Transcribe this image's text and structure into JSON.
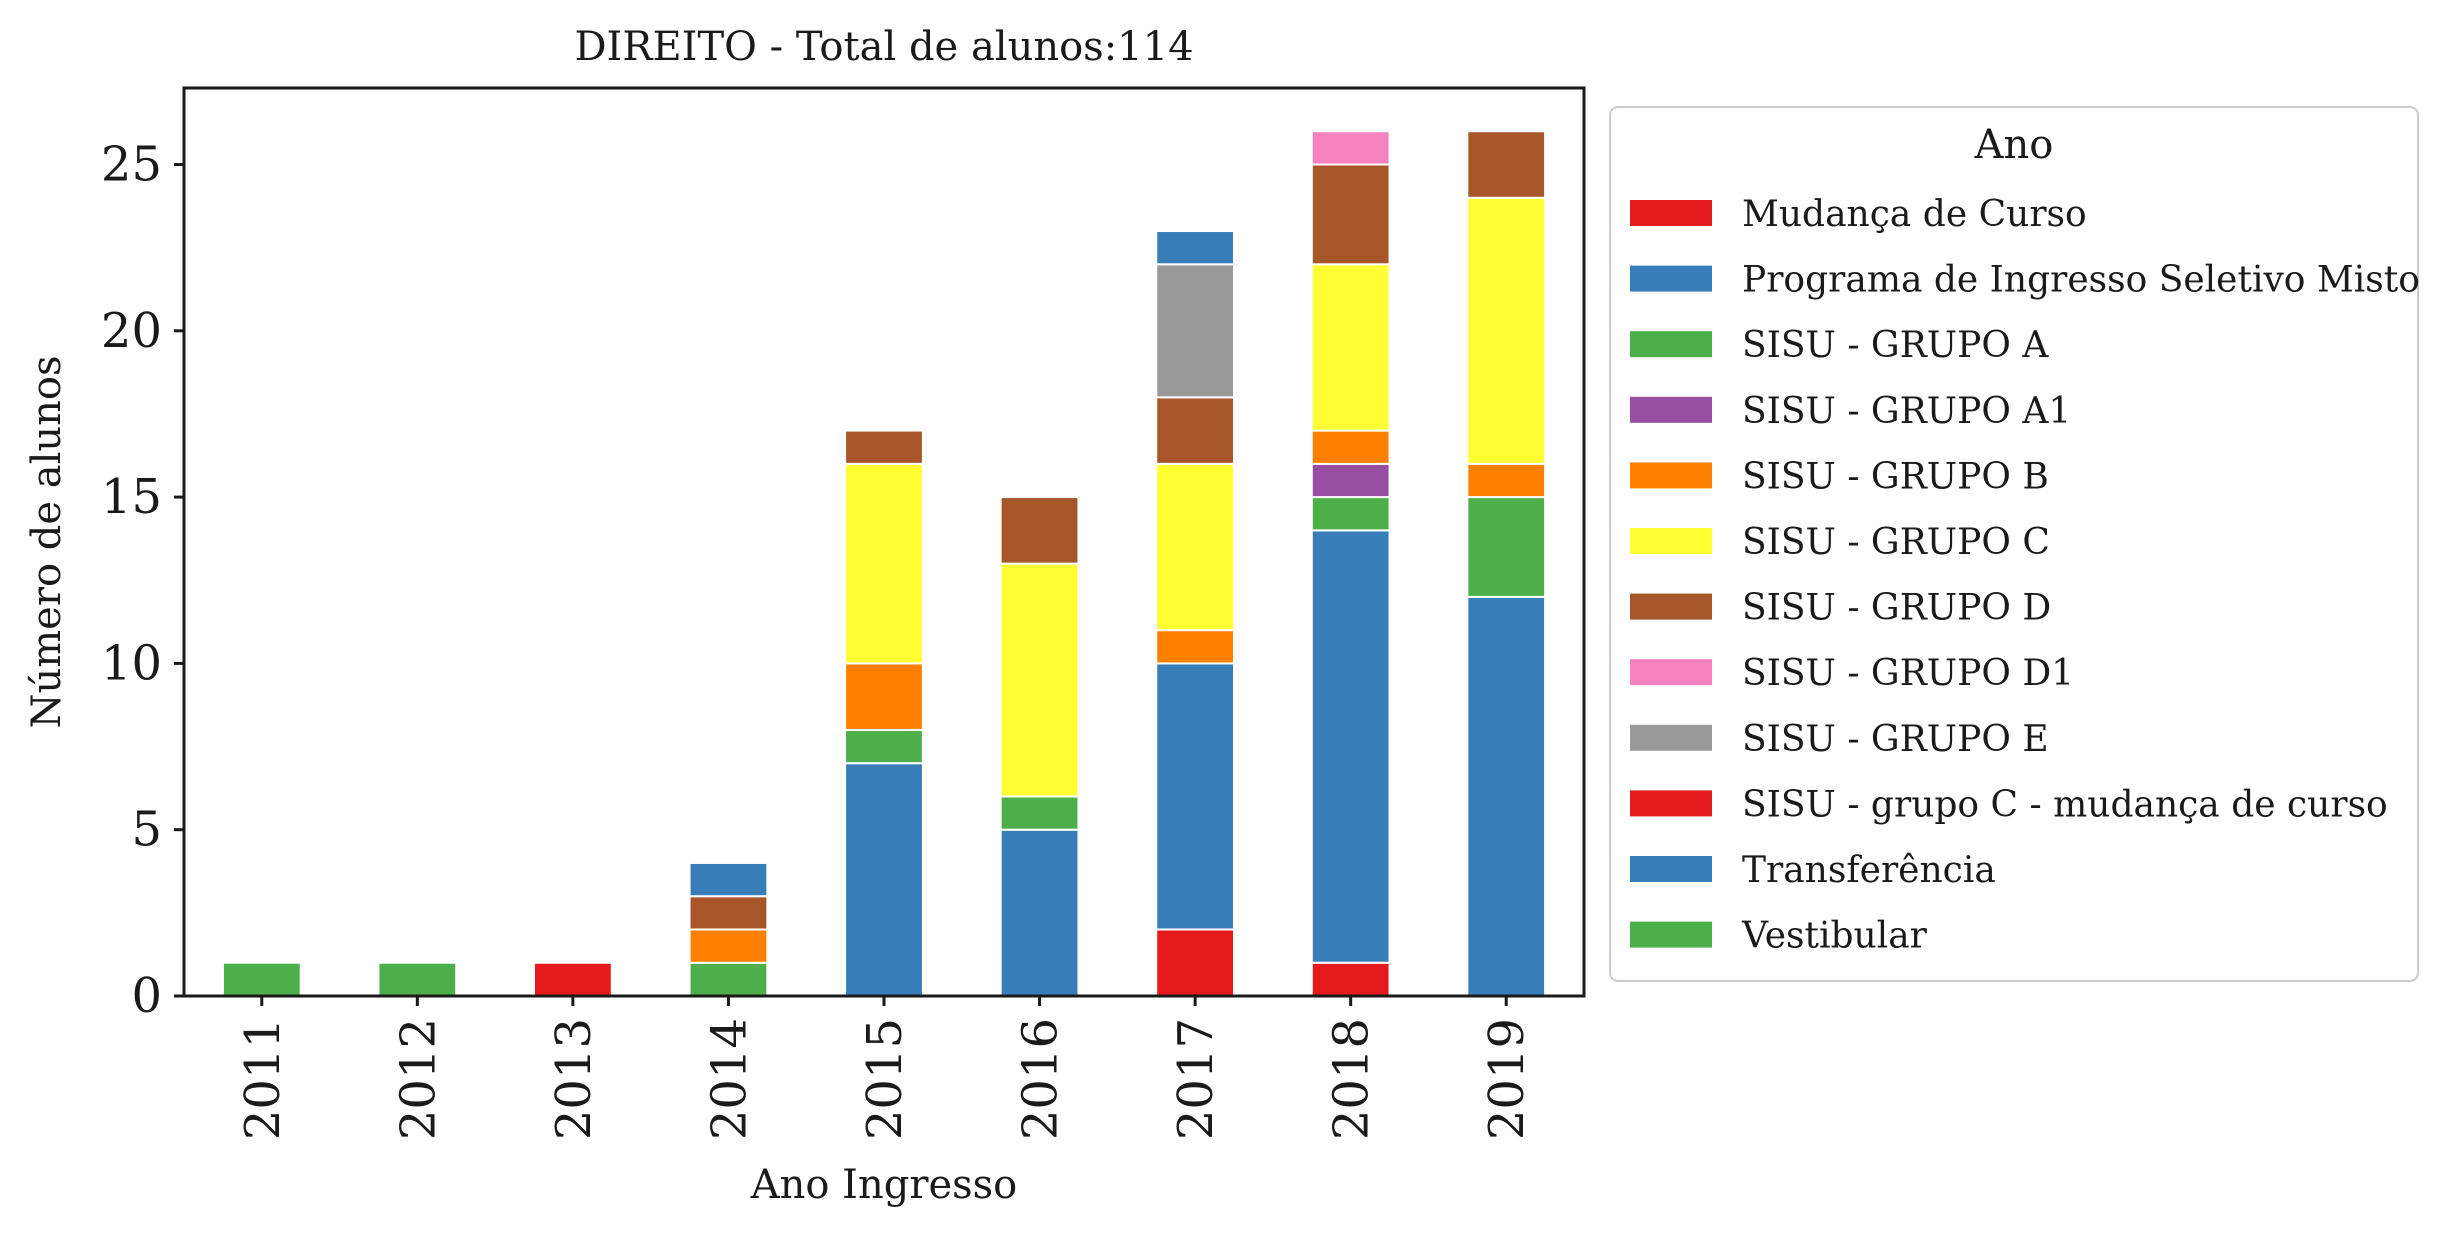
{
  "chart_data": {
    "type": "bar",
    "stacked": true,
    "title": "DIREITO - Total de alunos:114",
    "xlabel": "Ano Ingresso",
    "ylabel": "Número de alunos",
    "ylim": [
      0,
      27.3
    ],
    "yticks": [
      0,
      5,
      10,
      15,
      20,
      25
    ],
    "grid": false,
    "legend": {
      "title": "Ano",
      "placement": "outside-right"
    },
    "categories": [
      "2011",
      "2012",
      "2013",
      "2014",
      "2015",
      "2016",
      "2017",
      "2018",
      "2019"
    ],
    "series": [
      {
        "name": "Mudança de Curso",
        "color": "#e41a1c",
        "values": [
          0,
          0,
          0,
          0,
          0,
          0,
          2,
          1,
          0
        ]
      },
      {
        "name": "Programa de Ingresso Seletivo Misto",
        "color": "#377eb8",
        "values": [
          0,
          0,
          0,
          0,
          7,
          5,
          8,
          13,
          12
        ]
      },
      {
        "name": "SISU - GRUPO A",
        "color": "#4daf4a",
        "values": [
          0,
          0,
          0,
          1,
          1,
          1,
          0,
          1,
          3
        ]
      },
      {
        "name": "SISU - GRUPO A1",
        "color": "#984ea3",
        "values": [
          0,
          0,
          0,
          0,
          0,
          0,
          0,
          1,
          0
        ]
      },
      {
        "name": "SISU - GRUPO B",
        "color": "#ff7f00",
        "values": [
          0,
          0,
          0,
          1,
          2,
          0,
          1,
          1,
          1
        ]
      },
      {
        "name": "SISU - GRUPO C",
        "color": "#ffff33",
        "values": [
          0,
          0,
          0,
          0,
          6,
          7,
          5,
          5,
          8
        ]
      },
      {
        "name": "SISU - GRUPO D",
        "color": "#a65628",
        "values": [
          0,
          0,
          0,
          1,
          1,
          2,
          2,
          3,
          2
        ]
      },
      {
        "name": "SISU - GRUPO D1",
        "color": "#f781bf",
        "values": [
          0,
          0,
          0,
          0,
          0,
          0,
          0,
          1,
          0
        ]
      },
      {
        "name": "SISU - GRUPO E",
        "color": "#999999",
        "values": [
          0,
          0,
          0,
          0,
          0,
          0,
          4,
          0,
          0
        ]
      },
      {
        "name": "SISU - grupo C - mudança de curso",
        "color": "#e41a1c",
        "values": [
          0,
          0,
          1,
          0,
          0,
          0,
          0,
          0,
          0
        ]
      },
      {
        "name": "Transferência",
        "color": "#377eb8",
        "values": [
          0,
          0,
          0,
          1,
          0,
          0,
          1,
          0,
          0
        ]
      },
      {
        "name": "Vestibular",
        "color": "#4daf4a",
        "values": [
          1,
          1,
          0,
          0,
          0,
          0,
          0,
          0,
          0
        ]
      }
    ]
  }
}
